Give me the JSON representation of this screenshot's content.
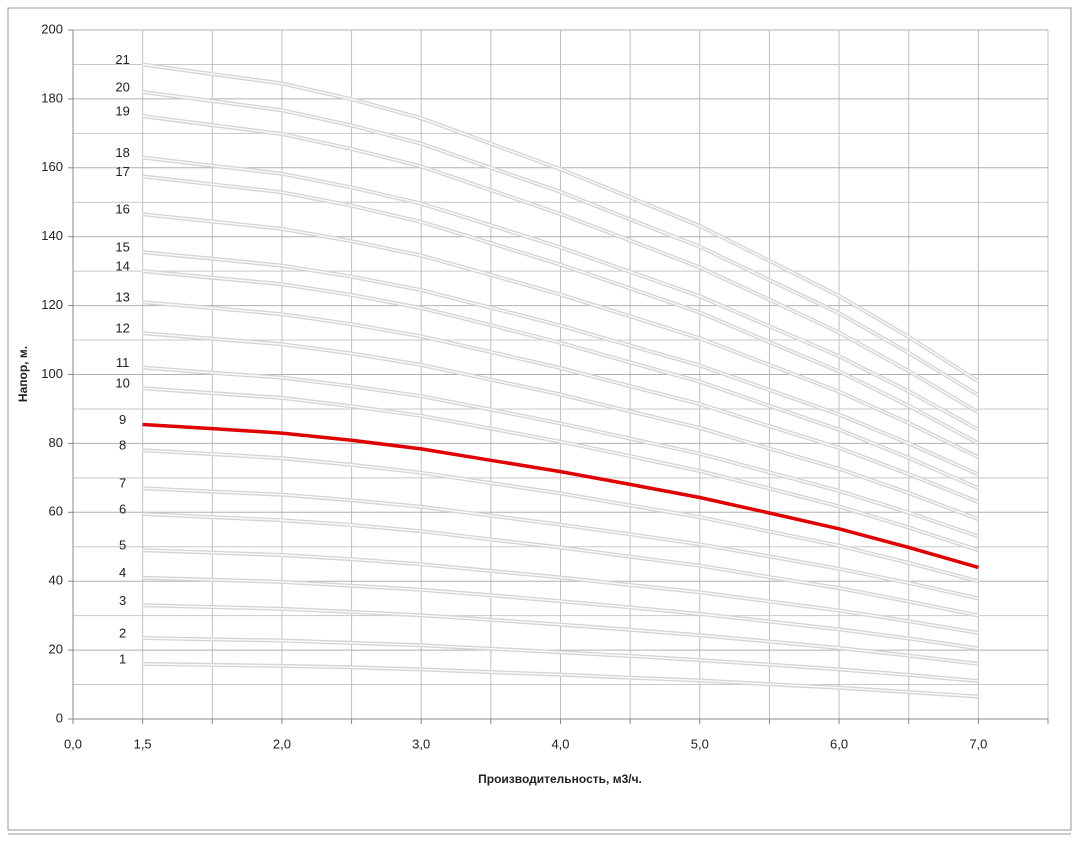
{
  "chart_data": {
    "type": "line",
    "xlabel": "Производительность, м3/ч.",
    "ylabel": "Напор, м.",
    "categories": [
      "0,0",
      "1,5",
      null,
      "2,0",
      null,
      "3,0",
      null,
      "4,0",
      null,
      "5,0",
      null,
      "6,0",
      null,
      "7,0",
      null
    ],
    "ylim": [
      0,
      200
    ],
    "yticks": [
      0,
      20,
      40,
      60,
      80,
      100,
      120,
      140,
      160,
      180,
      200
    ],
    "minor_yticks": [
      10,
      30,
      50,
      70,
      90,
      110,
      130,
      150,
      170,
      190
    ],
    "grid": true,
    "series": [
      {
        "name": "1",
        "color": "#d4d4d4",
        "values": [
          null,
          16,
          15.7,
          15.4,
          15,
          14.4,
          13.6,
          12.9,
          12,
          11.2,
          10.1,
          9.1,
          7.8,
          6.5,
          null
        ]
      },
      {
        "name": "2",
        "color": "#d4d4d4",
        "values": [
          null,
          23.5,
          23.1,
          22.8,
          22.1,
          21.4,
          20.4,
          19.4,
          18.3,
          17.1,
          15.8,
          14.4,
          12.8,
          11,
          null
        ]
      },
      {
        "name": "3",
        "color": "#d4d4d4",
        "values": [
          null,
          33,
          32.5,
          32,
          31.1,
          30.1,
          28.8,
          27.4,
          25.9,
          24.3,
          22.5,
          20.6,
          18.4,
          16,
          null
        ]
      },
      {
        "name": "4",
        "color": "#d4d4d4",
        "values": [
          null,
          41,
          40.4,
          39.8,
          38.7,
          37.5,
          35.9,
          34.2,
          32.4,
          30.5,
          28.3,
          26,
          23.4,
          20.5,
          null
        ]
      },
      {
        "name": "5",
        "color": "#d4d4d4",
        "values": [
          null,
          49,
          48.3,
          47.6,
          46.4,
          44.9,
          43,
          41.1,
          38.9,
          36.8,
          34.1,
          31.5,
          28.4,
          25,
          null
        ]
      },
      {
        "name": "6",
        "color": "#d4d4d4",
        "values": [
          null,
          59.5,
          58.6,
          57.7,
          56.3,
          54.5,
          52.1,
          49.8,
          47.1,
          44.5,
          41.2,
          38,
          34.1,
          30,
          null
        ]
      },
      {
        "name": "7",
        "color": "#d4d4d4",
        "values": [
          null,
          67,
          66,
          65.1,
          63.5,
          61.6,
          59,
          56.4,
          53.6,
          50.7,
          47.2,
          43.6,
          39.5,
          35,
          null
        ]
      },
      {
        "name": "8",
        "color": "#d4d4d4",
        "values": [
          null,
          78,
          76.9,
          75.7,
          73.8,
          71.5,
          68.5,
          65.5,
          62,
          58.6,
          54.4,
          50.3,
          45.3,
          40,
          null
        ]
      },
      {
        "name": "9",
        "color": "#e00000",
        "values": [
          null,
          85.5,
          84.3,
          83,
          80.9,
          78.4,
          75.1,
          71.8,
          68.1,
          64.3,
          59.8,
          55.2,
          49.8,
          44,
          null
        ]
      },
      {
        "name": "10",
        "color": "#d4d4d4",
        "values": [
          null,
          96,
          94.6,
          93.2,
          90.8,
          88,
          84.3,
          80.5,
          76.3,
          72,
          66.9,
          61.7,
          55.6,
          49,
          null
        ]
      },
      {
        "name": "11",
        "color": "#d4d4d4",
        "values": [
          null,
          102,
          100.5,
          99.1,
          96.6,
          93.7,
          89.8,
          85.8,
          81.4,
          77,
          71.6,
          66.2,
          59.9,
          53,
          null
        ]
      },
      {
        "name": "12",
        "color": "#d4d4d4",
        "values": [
          null,
          112,
          110.4,
          108.8,
          106.1,
          102.8,
          98.5,
          94.2,
          89.3,
          84.5,
          78.5,
          72.6,
          65.6,
          58,
          null
        ]
      },
      {
        "name": "13",
        "color": "#d4d4d4",
        "values": [
          null,
          121,
          119.3,
          117.5,
          114.6,
          111.1,
          106.5,
          101.9,
          96.6,
          91.4,
          85,
          78.7,
          71.1,
          63,
          null
        ]
      },
      {
        "name": "14",
        "color": "#d4d4d4",
        "values": [
          null,
          130,
          128.1,
          126.2,
          123.1,
          119.3,
          114.3,
          109.2,
          103.5,
          97.9,
          90.9,
          84,
          75.8,
          67,
          null
        ]
      },
      {
        "name": "15",
        "color": "#d4d4d4",
        "values": [
          null,
          135.5,
          133.6,
          131.6,
          128.4,
          124.5,
          119.4,
          114.2,
          108.4,
          102.6,
          95.5,
          88.4,
          80,
          71,
          null
        ]
      },
      {
        "name": "16",
        "color": "#d4d4d4",
        "values": [
          null,
          146.5,
          144.4,
          142.3,
          138.7,
          134.5,
          128.9,
          123.2,
          116.9,
          110.5,
          102.8,
          95,
          85.9,
          76,
          null
        ]
      },
      {
        "name": "17",
        "color": "#d4d4d4",
        "values": [
          null,
          157.5,
          155.2,
          152.9,
          149,
          144.3,
          138.1,
          131.9,
          125,
          118,
          109.4,
          100.9,
          90.9,
          80,
          null
        ]
      },
      {
        "name": "18",
        "color": "#d4d4d4",
        "values": [
          null,
          163,
          160.6,
          158.3,
          154.3,
          149.6,
          143.3,
          136.9,
          129.8,
          122.7,
          114,
          105.3,
          95.1,
          84,
          null
        ]
      },
      {
        "name": "19",
        "color": "#d4d4d4",
        "values": [
          null,
          175,
          172.4,
          169.8,
          165.5,
          160.4,
          153.5,
          146.6,
          138.9,
          131.1,
          121.7,
          112.2,
          101,
          89,
          null
        ]
      },
      {
        "name": "20",
        "color": "#d4d4d4",
        "values": [
          null,
          182,
          179.4,
          176.7,
          172.3,
          167,
          160,
          153,
          145,
          137.1,
          127.4,
          117.8,
          106.3,
          94,
          null
        ]
      },
      {
        "name": "21",
        "color": "#d4d4d4",
        "values": [
          null,
          190,
          187.2,
          184.5,
          179.9,
          174.4,
          167,
          159.6,
          151.4,
          143.1,
          133,
          122.8,
          110.9,
          98,
          null
        ]
      }
    ]
  }
}
